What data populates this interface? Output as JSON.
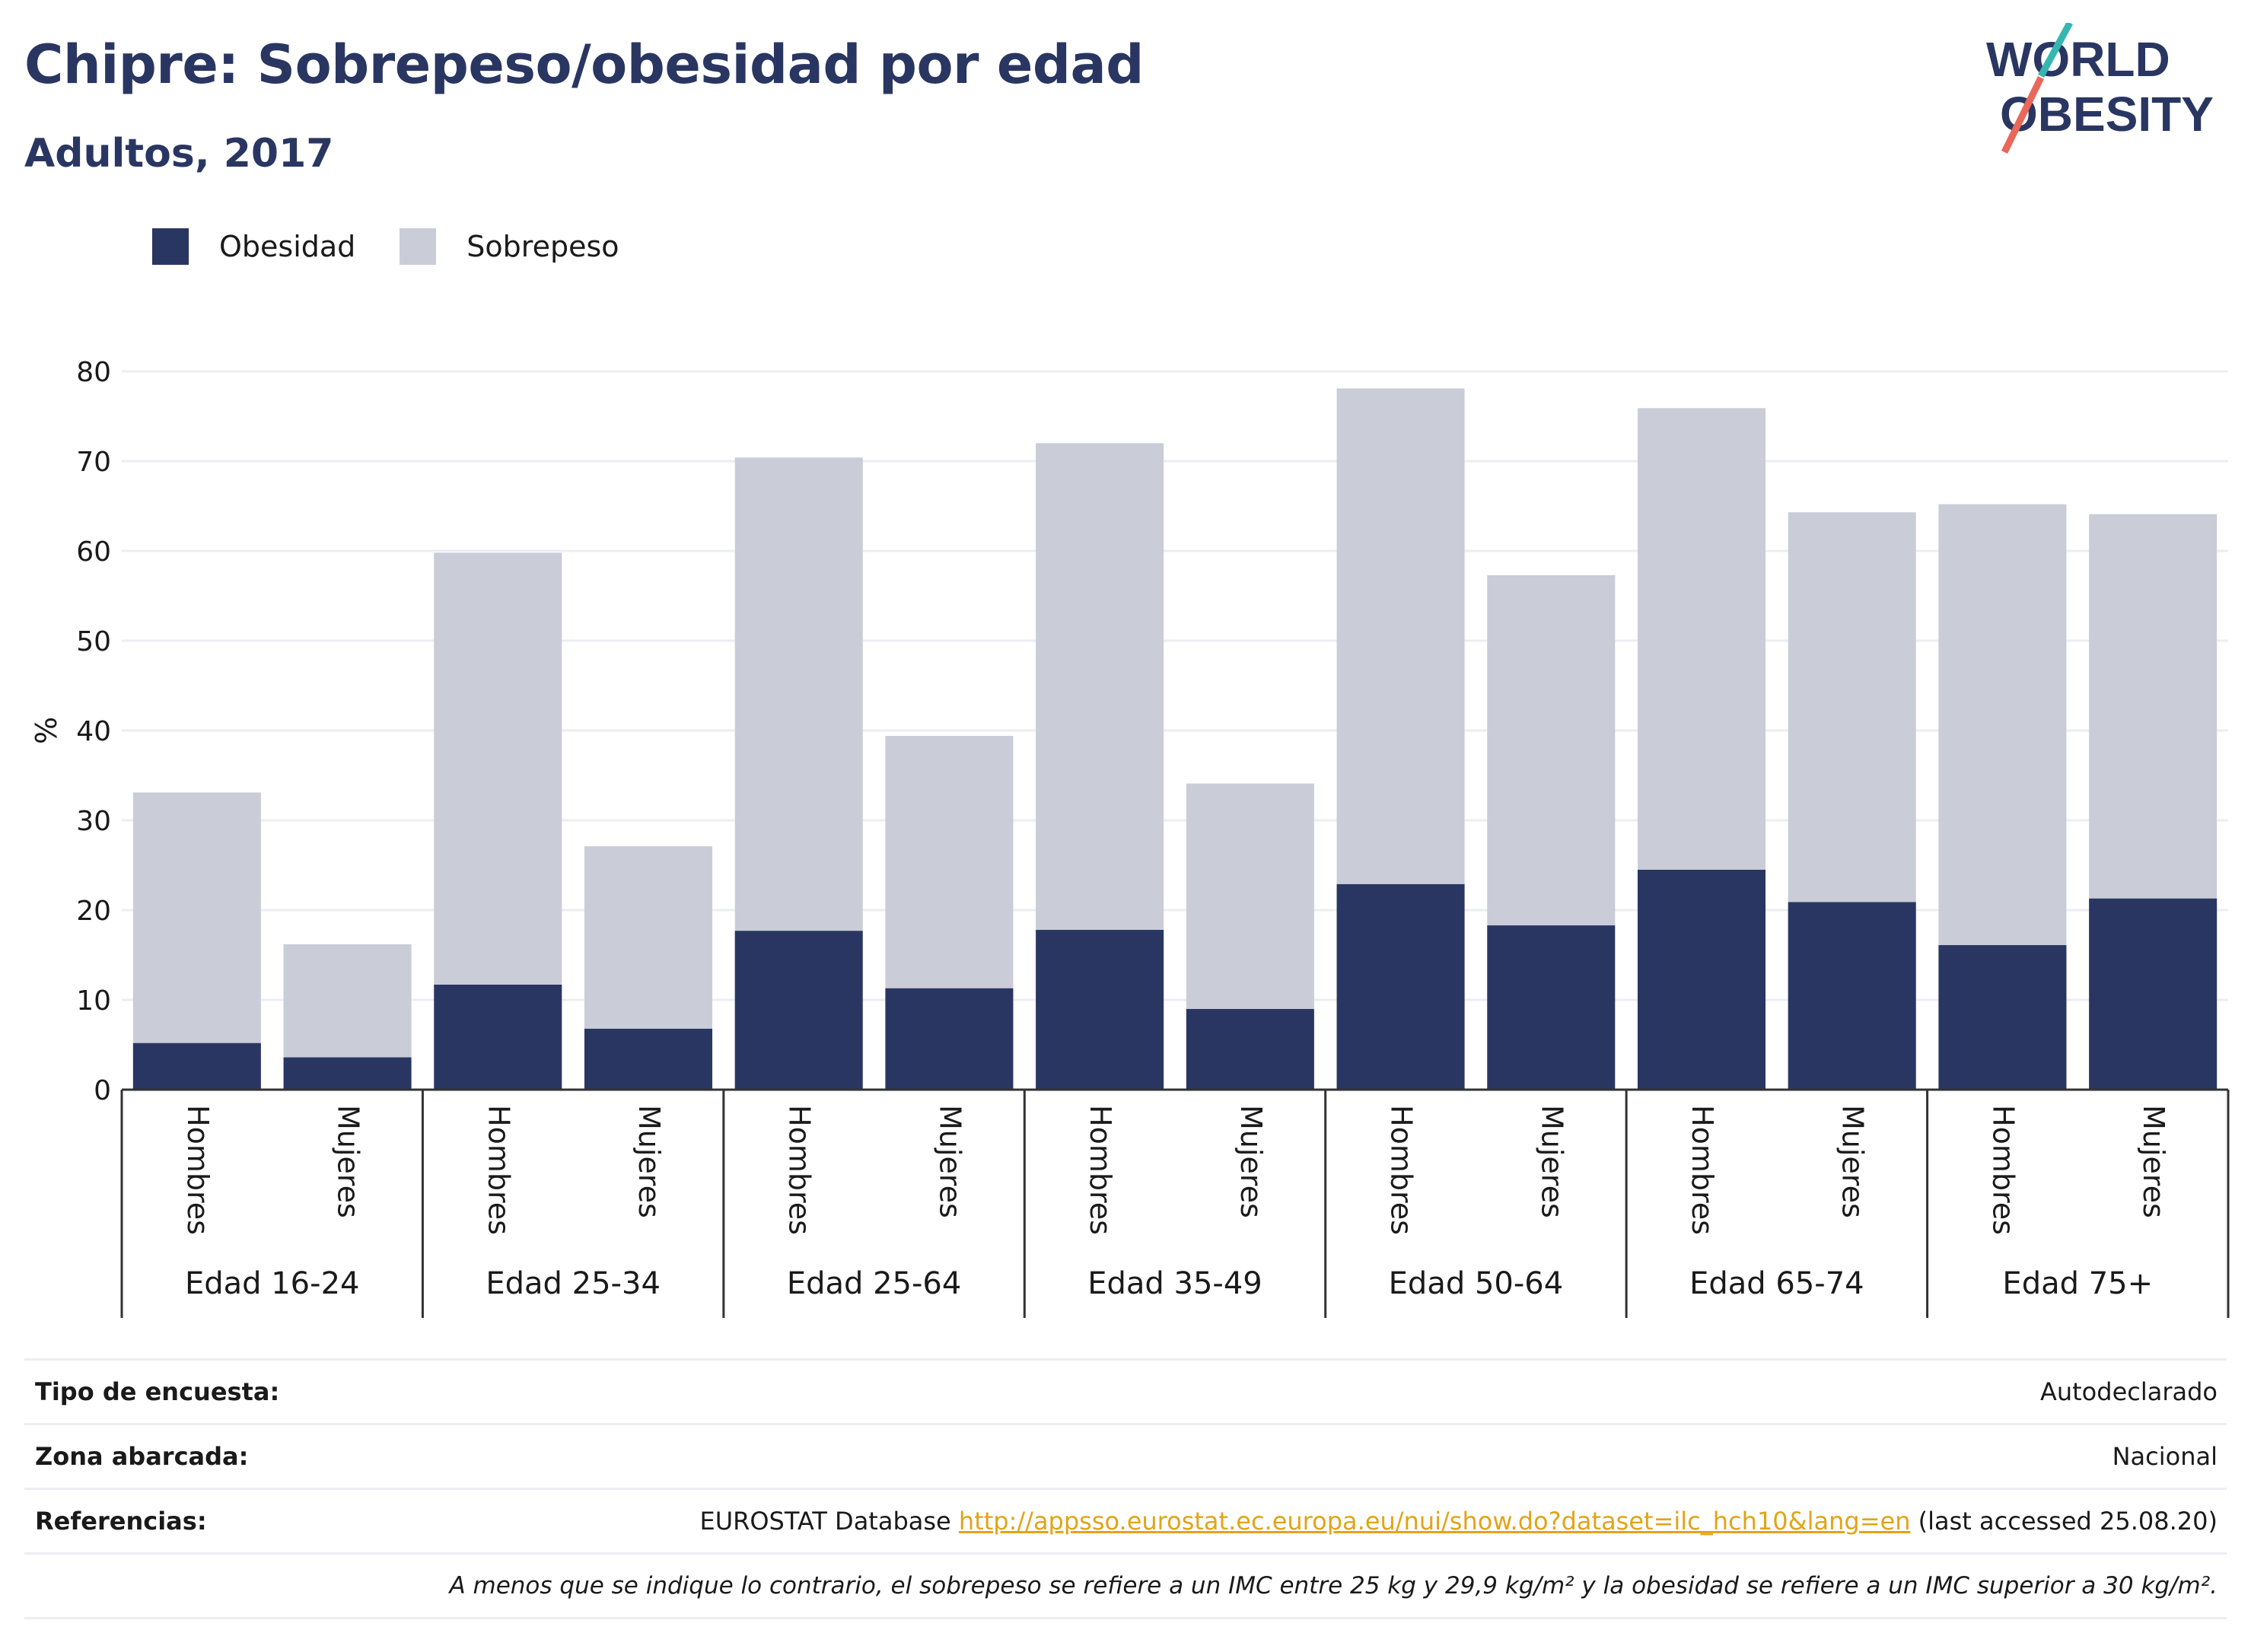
{
  "header": {
    "title": "Chipre: Sobrepeso/obesidad por edad",
    "subtitle": "Adultos, 2017"
  },
  "logo": {
    "line1": "WORLD",
    "line2": "OBESITY",
    "accent_colors": [
      "#36b6b3",
      "#e8685a"
    ]
  },
  "legend": {
    "items": [
      {
        "label": "Obesidad",
        "color": "#2a3662"
      },
      {
        "label": "Sobrepeso",
        "color": "#cacdd8"
      }
    ]
  },
  "chart_data": {
    "type": "bar",
    "stacked": true,
    "ylabel": "%",
    "ylim": [
      0,
      80
    ],
    "yticks": [
      0,
      10,
      20,
      30,
      40,
      50,
      60,
      70,
      80
    ],
    "grid": true,
    "legend_position": "top-left",
    "groups": [
      "Edad 16-24",
      "Edad 25-34",
      "Edad 25-64",
      "Edad 35-49",
      "Edad 50-64",
      "Edad 65-74",
      "Edad 75+"
    ],
    "subcategories": [
      "Hombres",
      "Mujeres"
    ],
    "series": [
      {
        "name": "Obesidad",
        "color": "#2a3662",
        "values": [
          5.2,
          3.6,
          11.7,
          6.8,
          17.7,
          11.3,
          17.8,
          9.0,
          22.9,
          18.3,
          24.5,
          20.9,
          16.1,
          21.3
        ]
      },
      {
        "name": "Sobrepeso",
        "color": "#cacdd8",
        "values": [
          27.9,
          12.6,
          48.1,
          20.3,
          52.7,
          28.1,
          54.2,
          25.1,
          55.2,
          39.0,
          51.4,
          43.4,
          49.1,
          42.8
        ]
      }
    ]
  },
  "metadata": {
    "rows": [
      {
        "label": "Tipo de encuesta:",
        "value": "Autodeclarado"
      },
      {
        "label": "Zona abarcada:",
        "value": "Nacional"
      },
      {
        "label": "Referencias:",
        "prefix": "EUROSTAT Database ",
        "link": "http://appsso.eurostat.ec.europa.eu/nui/show.do?dataset=ilc_hch10&lang=en",
        "suffix": " (last accessed 25.08.20)"
      }
    ],
    "note": "A menos que se indique lo contrario, el sobrepeso se refiere a un IMC entre 25 kg y 29,9 kg/m² y la obesidad se refiere a un IMC superior a 30 kg/m²."
  }
}
